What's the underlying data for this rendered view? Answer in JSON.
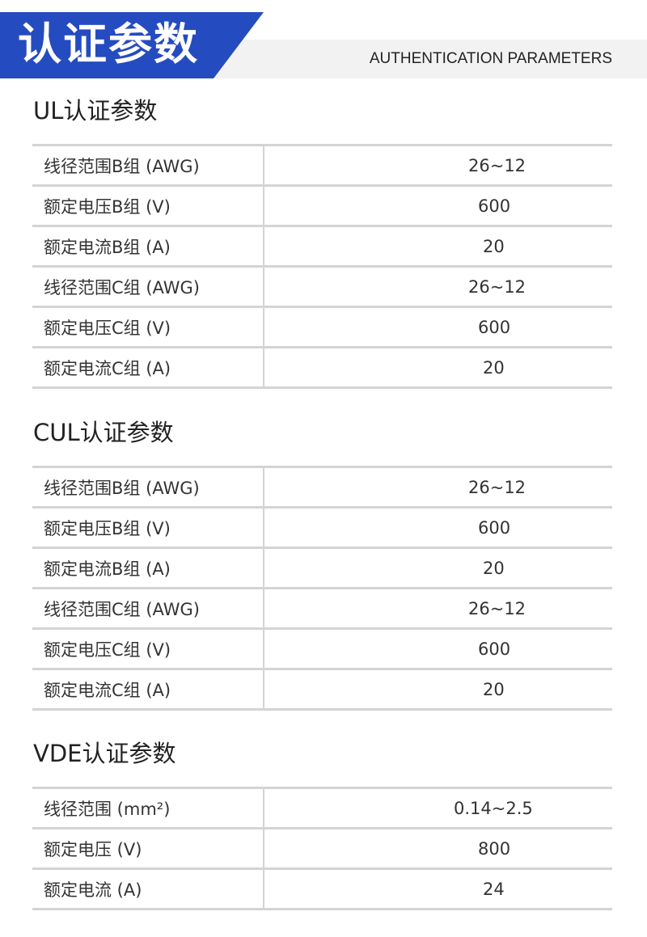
{
  "header": {
    "title": "认证参数",
    "subtitle": "AUTHENTICATION PARAMETERS",
    "accent": "#254bc0"
  },
  "sections": [
    {
      "title": "UL认证参数",
      "rows": [
        [
          "线径范围B组 (AWG)",
          "26~12"
        ],
        [
          "额定电压B组 (V)",
          "600"
        ],
        [
          "额定电流B组 (A)",
          "20"
        ],
        [
          "线径范围C组 (AWG)",
          "26~12"
        ],
        [
          "额定电压C组 (V)",
          "600"
        ],
        [
          "额定电流C组 (A)",
          "20"
        ]
      ]
    },
    {
      "title": "CUL认证参数",
      "rows": [
        [
          "线径范围B组 (AWG)",
          "26~12"
        ],
        [
          "额定电压B组 (V)",
          "600"
        ],
        [
          "额定电流B组 (A)",
          "20"
        ],
        [
          "线径范围C组 (AWG)",
          "26~12"
        ],
        [
          "额定电压C组 (V)",
          "600"
        ],
        [
          "额定电流C组 (A)",
          "20"
        ]
      ]
    },
    {
      "title": "VDE认证参数",
      "rows": [
        [
          "线径范围 (mm²)",
          "0.14~2.5"
        ],
        [
          "额定电压 (V)",
          "800"
        ],
        [
          "额定电流 (A)",
          "24"
        ]
      ]
    }
  ]
}
